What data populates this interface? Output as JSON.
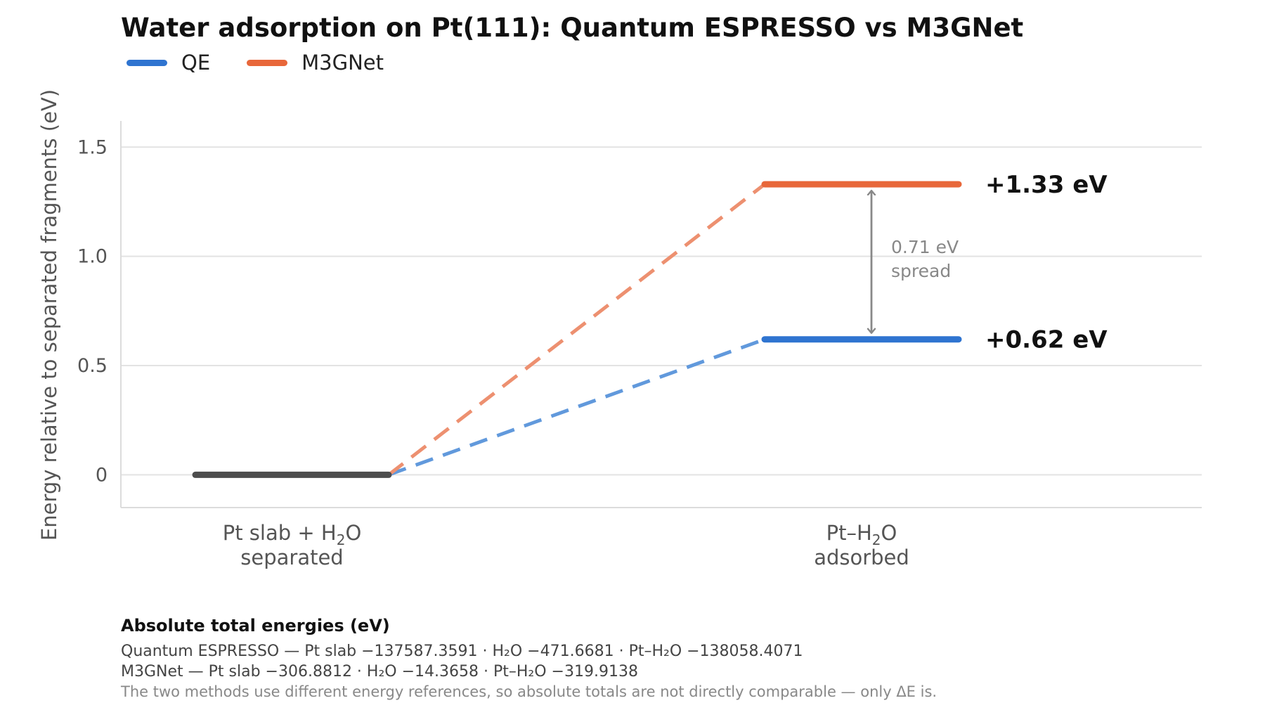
{
  "chart_data": {
    "type": "line",
    "title": "Water adsorption on Pt(111): Quantum ESPRESSO vs M3GNet",
    "ylabel": "Energy relative to separated fragments  (eV)",
    "xlabel": "",
    "ylim": [
      -0.15,
      1.62
    ],
    "yticks": [
      0,
      0.5,
      1.0,
      1.5
    ],
    "ytick_labels": [
      "0",
      "0.5",
      "1.0",
      "1.5"
    ],
    "grid": true,
    "legend_position": "top-left",
    "categories": [
      {
        "line1": "Pt slab + H",
        "sub": "2",
        "line1_tail": "O",
        "line2": "separated"
      },
      {
        "line1": "Pt–H",
        "sub": "2",
        "line1_tail": "O",
        "line2": "adsorbed"
      }
    ],
    "reference": {
      "name": "separated",
      "value": 0,
      "color": "#4d4d4d"
    },
    "series": [
      {
        "name": "QE",
        "values": [
          0,
          0.62
        ],
        "label": "+0.62 eV",
        "color": "#2f74d0",
        "connector_color": "#6199dc"
      },
      {
        "name": "M3GNet",
        "values": [
          0,
          1.33
        ],
        "label": "+1.33 eV",
        "color": "#e8673a",
        "connector_color": "#ed9070"
      }
    ],
    "annotation": {
      "from": 0.62,
      "to": 1.33,
      "line1": "0.71 eV",
      "line2": "spread",
      "color": "#888888"
    }
  },
  "notes": {
    "heading": "Absolute total energies (eV)",
    "lines": [
      "Quantum ESPRESSO — Pt slab −137587.3591 · H₂O −471.6681 · Pt–H₂O −138058.4071",
      "M3GNet — Pt slab −306.8812 · H₂O −14.3658 · Pt–H₂O −319.9138"
    ],
    "footnote": "The two methods use different energy references, so absolute totals are not directly comparable — only ΔE is."
  }
}
